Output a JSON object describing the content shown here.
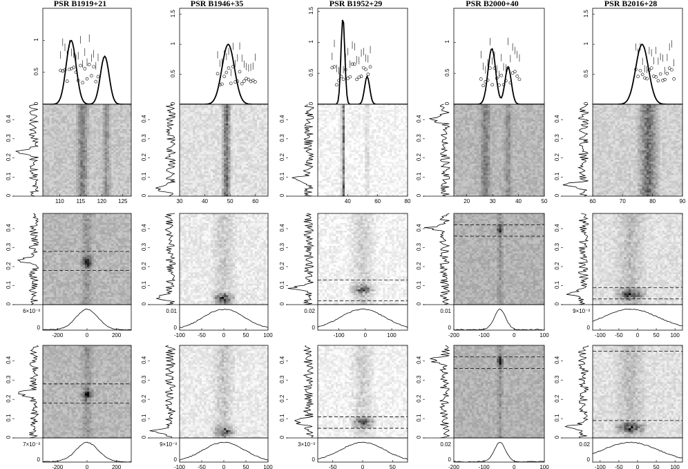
{
  "figure": {
    "pulsars": [
      "PSR B1919+21",
      "PSR B1946+35",
      "PSR B1952+29",
      "PSR B2000+40",
      "PSR B2016+28"
    ]
  },
  "chart_data": [
    {
      "type": "line",
      "pulsar": "PSR B1919+21",
      "panel": "profile",
      "yticks": [
        "0",
        "0.5",
        "1"
      ],
      "ylim": [
        0,
        1.5
      ],
      "xlim": [
        106,
        127
      ],
      "series": [
        {
          "values_x": [
            106,
            108,
            110,
            112,
            113,
            114,
            115,
            116,
            117,
            118,
            119,
            120,
            121,
            122,
            123,
            125,
            127
          ],
          "values_y": [
            0,
            0.02,
            0.1,
            0.6,
            0.9,
            1.06,
            0.9,
            0.62,
            0.56,
            0.65,
            0.75,
            0.8,
            0.72,
            0.5,
            0.2,
            0.03,
            0
          ]
        },
        {
          "values_x": [
            113,
            113.5,
            114,
            114.5,
            115,
            115.5,
            116,
            116.5,
            117,
            117.5,
            118,
            118.5,
            119,
            119.5,
            120,
            120.5,
            121,
            121.5
          ],
          "values_y": [
            0.5,
            0.45,
            0.43,
            0.46,
            0.44,
            0.35,
            0.38,
            0.36,
            0.45,
            0.42,
            0.3,
            0.44,
            0.48,
            0.5,
            0.46,
            0.52,
            0.55,
            0.5
          ]
        },
        {
          "values_x": [
            113,
            113.5,
            114,
            114.5,
            115,
            115.5,
            116,
            116.5,
            117,
            117.5,
            118,
            118.5,
            119,
            119.5,
            120,
            120.5,
            121,
            121.5
          ],
          "values_y": [
            0.1,
            0.2,
            0.3,
            0.4,
            0.45,
            0.4,
            0.35,
            0.3,
            0.38,
            0.42,
            0.45,
            0.4,
            0.3,
            0.25,
            0.35,
            0.4,
            0.3,
            0.2
          ]
        }
      ]
    },
    {
      "type": "heatmap",
      "pulsar": "PSR B1919+21",
      "panel": "lrfs",
      "xlim": [
        106,
        127
      ],
      "xticks": [
        "110",
        "115",
        "120",
        "125"
      ],
      "yticks": [
        "0",
        "0.1",
        "0.2",
        "0.3",
        "0.4"
      ],
      "ylim": [
        0,
        0.48
      ]
    },
    {
      "type": "heatmap",
      "pulsar": "PSR B1919+21",
      "panel": "2dfs",
      "xlim": [
        -300,
        300
      ],
      "xticks": [
        "-200",
        "0",
        "200"
      ],
      "yticks": [
        "0",
        "0.1",
        "0.2",
        "0.3",
        "0.4"
      ],
      "ylim": [
        0,
        0.48
      ],
      "dashed_lines_y": [
        0.18,
        0.28
      ],
      "bottom_label": "6×10⁻³"
    },
    {
      "type": "heatmap",
      "pulsar": "PSR B1919+21",
      "panel": "2dfs-2",
      "xlim": [
        -300,
        300
      ],
      "xticks": [
        "-200",
        "0",
        "200"
      ],
      "yticks": [
        "0",
        "0.1",
        "0.2",
        "0.3",
        "0.4"
      ],
      "ylim": [
        0,
        0.48
      ],
      "dashed_lines_y": [
        0.18,
        0.28
      ],
      "bottom_label": "7×10⁻³"
    },
    {
      "type": "line",
      "pulsar": "PSR B1946+35",
      "panel": "profile",
      "yticks": [
        "0",
        "0.5",
        "1",
        "1.5"
      ],
      "ylim": [
        0,
        1.6
      ],
      "xlim": [
        30,
        65
      ]
    },
    {
      "type": "heatmap",
      "pulsar": "PSR B1946+35",
      "panel": "lrfs",
      "xlim": [
        30,
        65
      ],
      "xticks": [
        "30",
        "40",
        "50",
        "60"
      ],
      "yticks": [
        "0",
        "0.1",
        "0.2",
        "0.3",
        "0.4"
      ],
      "ylim": [
        0,
        0.48
      ]
    },
    {
      "type": "heatmap",
      "pulsar": "PSR B1946+35",
      "panel": "2dfs",
      "xlim": [
        -100,
        100
      ],
      "xticks": [
        "-100",
        "-50",
        "0",
        "50",
        "100"
      ],
      "yticks": [
        "0",
        "0.1",
        "0.2",
        "0.3",
        "0.4"
      ],
      "ylim": [
        0,
        0.48
      ],
      "bottom_label": "0.01"
    },
    {
      "type": "heatmap",
      "pulsar": "PSR B1946+35",
      "panel": "2dfs-2",
      "xlim": [
        -100,
        100
      ],
      "xticks": [
        "-100",
        "-50",
        "0",
        "50",
        "100"
      ],
      "yticks": [
        "0",
        "0.1",
        "0.2",
        "0.3",
        "0.4"
      ],
      "ylim": [
        0,
        0.48
      ],
      "bottom_label": "9×10⁻³"
    },
    {
      "type": "line",
      "pulsar": "PSR B1952+29",
      "panel": "profile",
      "yticks": [
        "0",
        "0.5",
        "1",
        "1.5"
      ],
      "ylim": [
        0,
        1.55
      ],
      "xlim": [
        20,
        80
      ]
    },
    {
      "type": "heatmap",
      "pulsar": "PSR B1952+29",
      "panel": "lrfs",
      "xlim": [
        20,
        80
      ],
      "xticks": [
        "40",
        "60",
        "80"
      ],
      "yticks": [
        "0",
        "0.1",
        "0.2",
        "0.3",
        "0.4"
      ],
      "ylim": [
        0,
        0.48
      ]
    },
    {
      "type": "heatmap",
      "pulsar": "PSR B1952+29",
      "panel": "2dfs",
      "xlim": [
        -180,
        160
      ],
      "xticks": [
        "-100",
        "0",
        "100"
      ],
      "yticks": [
        "0",
        "0.1",
        "0.2",
        "0.3",
        "0.4"
      ],
      "ylim": [
        0,
        0.48
      ],
      "dashed_lines_y": [
        0.02,
        0.13
      ],
      "bottom_label": "0.02"
    },
    {
      "type": "heatmap",
      "pulsar": "PSR B1952+29",
      "panel": "2dfs-2",
      "xlim": [
        -75,
        75
      ],
      "xticks": [
        "-50",
        "0",
        "50"
      ],
      "yticks": [
        "0",
        "0.1",
        "0.2",
        "0.3",
        "0.4"
      ],
      "ylim": [
        0,
        0.48
      ],
      "dashed_lines_y": [
        0.05,
        0.11
      ],
      "bottom_label": "3×10⁻³"
    },
    {
      "type": "line",
      "pulsar": "PSR B2000+40",
      "panel": "profile",
      "yticks": [
        "0",
        "0.5",
        "1"
      ],
      "ylim": [
        0,
        1.55
      ],
      "xlim": [
        15,
        50
      ]
    },
    {
      "type": "heatmap",
      "pulsar": "PSR B2000+40",
      "panel": "lrfs",
      "xlim": [
        15,
        50
      ],
      "xticks": [
        "20",
        "30",
        "40",
        "50"
      ],
      "yticks": [
        "0",
        "0.1",
        "0.2",
        "0.3",
        "0.4"
      ],
      "ylim": [
        0,
        0.48
      ]
    },
    {
      "type": "heatmap",
      "pulsar": "PSR B2000+40",
      "panel": "2dfs",
      "xlim": [
        -200,
        100
      ],
      "xticks": [
        "-200",
        "-100",
        "0",
        "100"
      ],
      "yticks": [
        "0",
        "0.1",
        "0.2",
        "0.3",
        "0.4"
      ],
      "ylim": [
        0,
        0.48
      ],
      "dashed_lines_y": [
        0.36,
        0.42
      ],
      "bottom_label": "0.01"
    },
    {
      "type": "heatmap",
      "pulsar": "PSR B2000+40",
      "panel": "2dfs-2",
      "xlim": [
        -200,
        100
      ],
      "xticks": [
        "-200",
        "-100",
        "0",
        "100"
      ],
      "yticks": [
        "0",
        "0.1",
        "0.2",
        "0.3",
        "0.4"
      ],
      "ylim": [
        0,
        0.48
      ],
      "dashed_lines_y": [
        0.36,
        0.42
      ],
      "bottom_label": "0.02"
    },
    {
      "type": "line",
      "pulsar": "PSR B2016+28",
      "panel": "profile",
      "yticks": [
        "0",
        "0.5",
        "1",
        "1.5"
      ],
      "ylim": [
        0,
        1.6
      ],
      "xlim": [
        60,
        90
      ]
    },
    {
      "type": "heatmap",
      "pulsar": "PSR B2016+28",
      "panel": "lrfs",
      "xlim": [
        60,
        90
      ],
      "xticks": [
        "60",
        "70",
        "80",
        "90"
      ],
      "yticks": [
        "0",
        "0.1",
        "0.2",
        "0.3",
        "0.4"
      ],
      "ylim": [
        0,
        0.48
      ]
    },
    {
      "type": "heatmap",
      "pulsar": "PSR B2016+28",
      "panel": "2dfs",
      "xlim": [
        -120,
        120
      ],
      "xticks": [
        "-100",
        "-50",
        "0",
        "50",
        "100"
      ],
      "yticks": [
        "0",
        "0.1",
        "0.2",
        "0.3",
        "0.4"
      ],
      "ylim": [
        0,
        0.48
      ],
      "dashed_lines_y": [
        0.03,
        0.09
      ],
      "bottom_label": "9×10⁻³"
    },
    {
      "type": "heatmap",
      "pulsar": "PSR B2016+28",
      "panel": "2dfs-2",
      "xlim": [
        -120,
        120
      ],
      "xticks": [
        "-100",
        "-50",
        "0",
        "50",
        "100"
      ],
      "yticks": [
        "0",
        "0.1",
        "0.2",
        "0.3",
        "0.4"
      ],
      "ylim": [
        0,
        0.48
      ],
      "dashed_lines_y": [
        0.09,
        0.45
      ],
      "bottom_label": "0.02"
    }
  ]
}
